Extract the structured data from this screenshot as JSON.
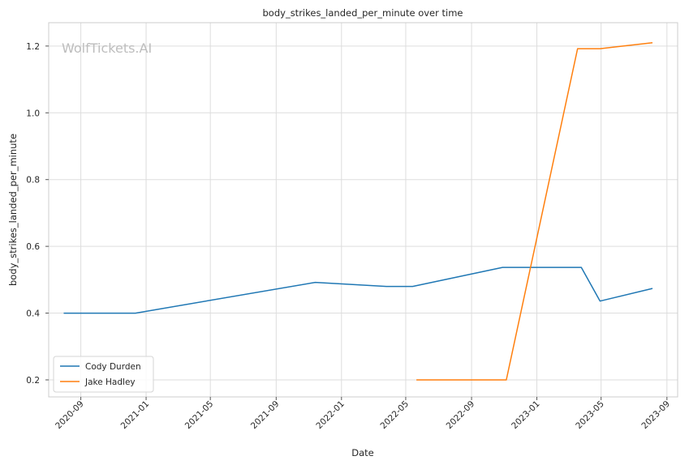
{
  "chart_data": {
    "type": "line",
    "title": "body_strikes_landed_per_minute over time",
    "xlabel": "Date",
    "ylabel": "body_strikes_landed_per_minute",
    "watermark": "WolfTickets.AI",
    "xlim": [
      "2020-07-03",
      "2023-09-21"
    ],
    "ylim": [
      0.149,
      1.27
    ],
    "x_ticks": [
      "2020-09",
      "2021-01",
      "2021-05",
      "2021-09",
      "2022-01",
      "2022-05",
      "2022-09",
      "2023-01",
      "2023-05",
      "2023-09"
    ],
    "y_ticks": [
      "0.2",
      "0.4",
      "0.6",
      "0.8",
      "1.0",
      "1.2"
    ],
    "grid": true,
    "legend_position": "lower-left",
    "series": [
      {
        "name": "Cody Durden",
        "color": "#1f77b4",
        "points": [
          {
            "x": "2020-07-31",
            "y": 0.4
          },
          {
            "x": "2020-12-12",
            "y": 0.4
          },
          {
            "x": "2021-11-13",
            "y": 0.492
          },
          {
            "x": "2022-03-26",
            "y": 0.48
          },
          {
            "x": "2022-05-14",
            "y": 0.48
          },
          {
            "x": "2022-10-29",
            "y": 0.537
          },
          {
            "x": "2023-03-25",
            "y": 0.537
          },
          {
            "x": "2023-04-29",
            "y": 0.436
          },
          {
            "x": "2023-08-05",
            "y": 0.474
          }
        ]
      },
      {
        "name": "Jake Hadley",
        "color": "#ff7f0e",
        "points": [
          {
            "x": "2022-05-21",
            "y": 0.2
          },
          {
            "x": "2022-11-05",
            "y": 0.2
          },
          {
            "x": "2023-03-18",
            "y": 1.192
          },
          {
            "x": "2023-04-29",
            "y": 1.192
          },
          {
            "x": "2023-08-05",
            "y": 1.21
          }
        ]
      }
    ]
  }
}
